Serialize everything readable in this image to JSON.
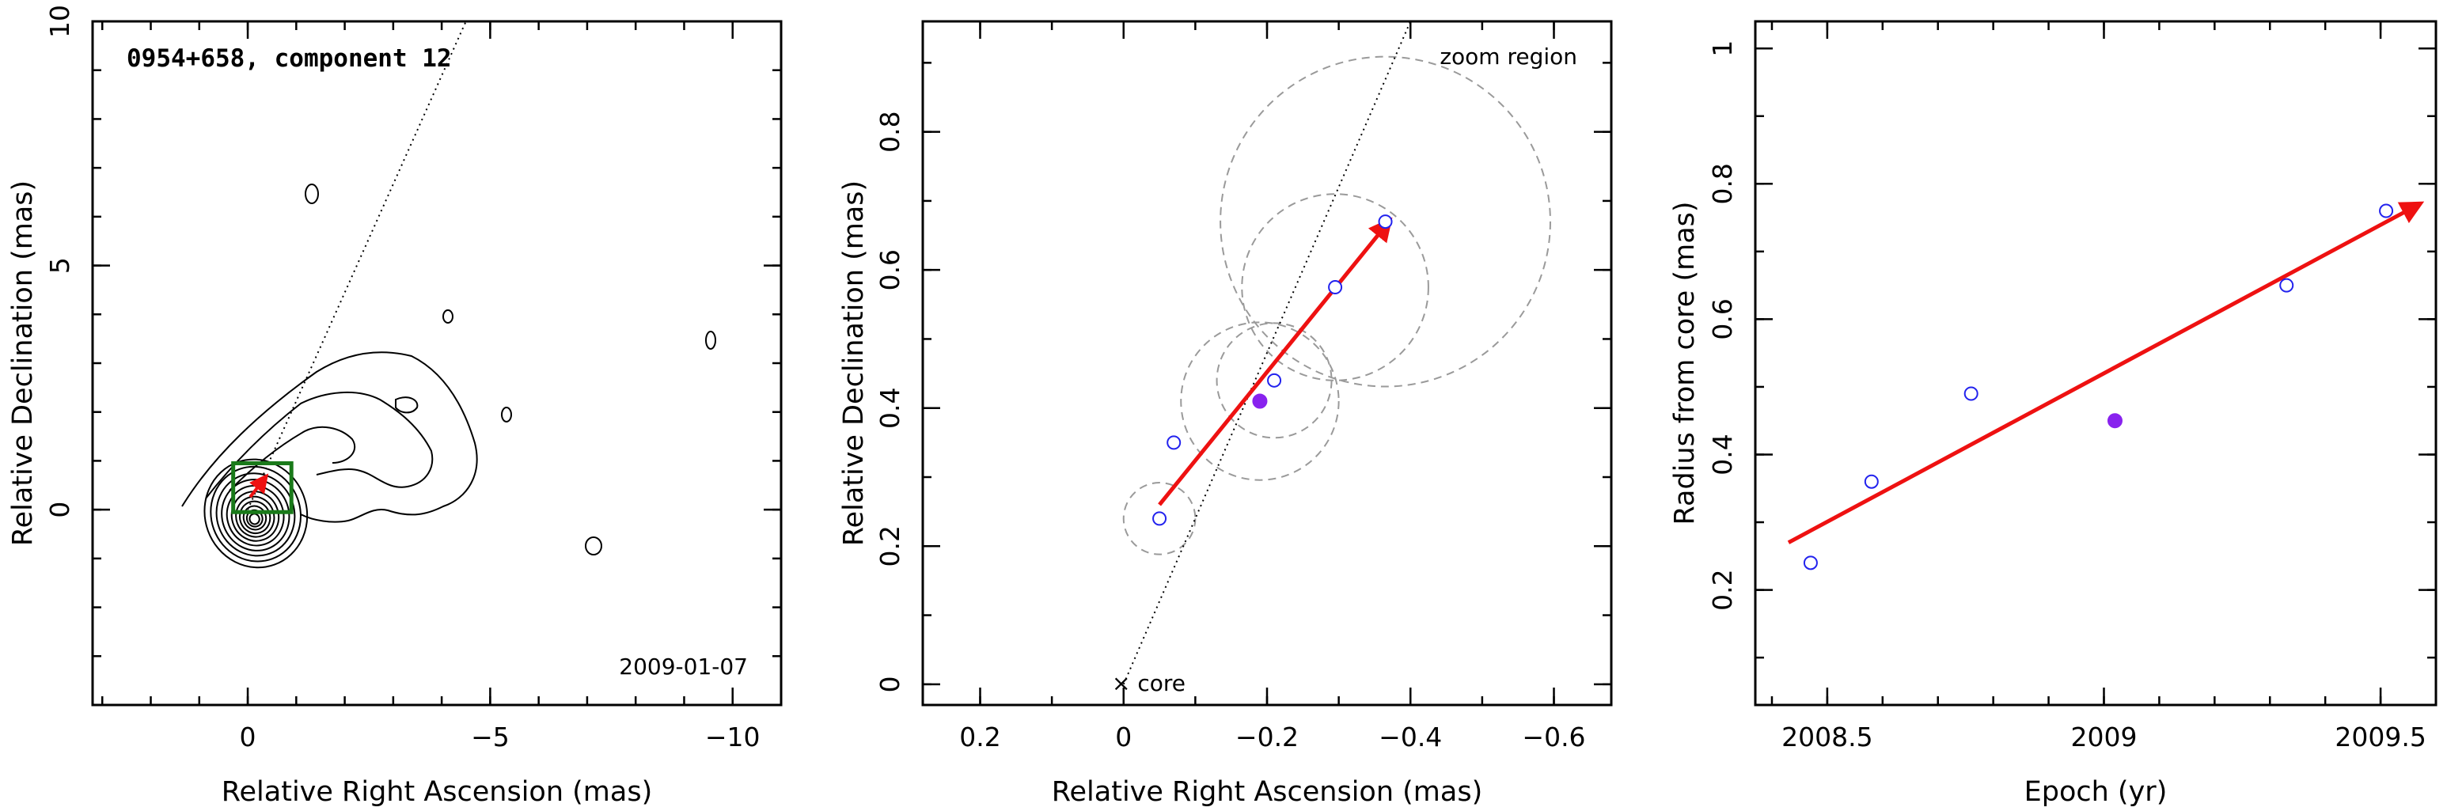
{
  "colors": {
    "arrow": "#ee1111",
    "open_point": "#2222ee",
    "filled_point": "#8822ee",
    "box": "#1a7a1a",
    "zoom_circle": "#9a9a9a"
  },
  "chart_data": [
    {
      "type": "contour",
      "title": "0954+658, component 12",
      "date_label": "2009-01-07",
      "xlabel": "Relative Right Ascension (mas)",
      "ylabel": "Relative Declination (mas)",
      "xlim": [
        3.2,
        -11
      ],
      "ylim": [
        -4,
        10
      ],
      "x_ticks": [
        0,
        -5,
        -10
      ],
      "x_tick_labels": [
        "0",
        "−5",
        "−10"
      ],
      "y_ticks": [
        0,
        5,
        10
      ],
      "y_tick_labels": [
        "0",
        "5",
        "10"
      ],
      "jet_axis_line": [
        [
          0,
          0
        ],
        [
          -4.5,
          10
        ]
      ],
      "zoom_box": {
        "x": [
          0.3,
          -0.9
        ],
        "y": [
          -0.05,
          0.95
        ]
      },
      "arrow": {
        "from": [
          -0.05,
          0.26
        ],
        "to": [
          -0.37,
          0.67
        ]
      }
    },
    {
      "type": "scatter",
      "xlabel": "Relative Right Ascension (mas)",
      "ylabel": "Relative Declination (mas)",
      "xlim": [
        0.28,
        -0.68
      ],
      "ylim": [
        -0.03,
        0.96
      ],
      "x_ticks": [
        0.2,
        0,
        -0.2,
        -0.4,
        -0.6
      ],
      "x_tick_labels": [
        "0.2",
        "0",
        "−0.2",
        "−0.4",
        "−0.6"
      ],
      "y_ticks": [
        0,
        0.2,
        0.4,
        0.6,
        0.8
      ],
      "y_tick_labels": [
        "0",
        "0.2",
        "0.4",
        "0.6",
        "0.8"
      ],
      "annotations": {
        "zoom": "zoom region",
        "core": "× core"
      },
      "core": [
        0,
        0
      ],
      "jet_axis_line": [
        [
          0,
          0
        ],
        [
          -0.4,
          0.96
        ]
      ],
      "open_points": [
        {
          "x": -0.05,
          "y": 0.24
        },
        {
          "x": -0.07,
          "y": 0.35
        },
        {
          "x": -0.21,
          "y": 0.44
        },
        {
          "x": -0.295,
          "y": 0.575
        },
        {
          "x": -0.365,
          "y": 0.67
        }
      ],
      "filled_points": [
        {
          "x": -0.19,
          "y": 0.41
        }
      ],
      "dashed_circles": [
        {
          "cx": -0.05,
          "cy": 0.24,
          "r": 0.05
        },
        {
          "cx": -0.07,
          "cy": 0.35,
          "r": 0.005
        },
        {
          "cx": -0.19,
          "cy": 0.41,
          "r": 0.11
        },
        {
          "cx": -0.21,
          "cy": 0.44,
          "r": 0.08
        },
        {
          "cx": -0.295,
          "cy": 0.575,
          "r": 0.13
        },
        {
          "cx": -0.365,
          "cy": 0.67,
          "r": 0.23
        }
      ],
      "arrow": {
        "from": [
          -0.05,
          0.26
        ],
        "to": [
          -0.37,
          0.67
        ]
      }
    },
    {
      "type": "scatter",
      "xlabel": "Epoch (yr)",
      "ylabel": "Radius from core (mas)",
      "xlim": [
        2008.37,
        2009.6
      ],
      "ylim": [
        0.03,
        1.04
      ],
      "x_ticks": [
        2008.5,
        2009,
        2009.5
      ],
      "x_tick_labels": [
        "2008.5",
        "2009",
        "2009.5"
      ],
      "y_ticks": [
        0.2,
        0.4,
        0.6,
        0.8,
        1
      ],
      "y_tick_labels": [
        "0.2",
        "0.4",
        "0.6",
        "0.8",
        "1"
      ],
      "open_points": [
        {
          "x": 2008.47,
          "y": 0.24
        },
        {
          "x": 2008.58,
          "y": 0.36
        },
        {
          "x": 2008.76,
          "y": 0.49
        },
        {
          "x": 2009.33,
          "y": 0.65
        },
        {
          "x": 2009.51,
          "y": 0.76
        }
      ],
      "filled_points": [
        {
          "x": 2009.02,
          "y": 0.45
        }
      ],
      "arrow": {
        "from": [
          2008.43,
          0.27
        ],
        "to": [
          2009.57,
          0.77
        ]
      }
    }
  ]
}
